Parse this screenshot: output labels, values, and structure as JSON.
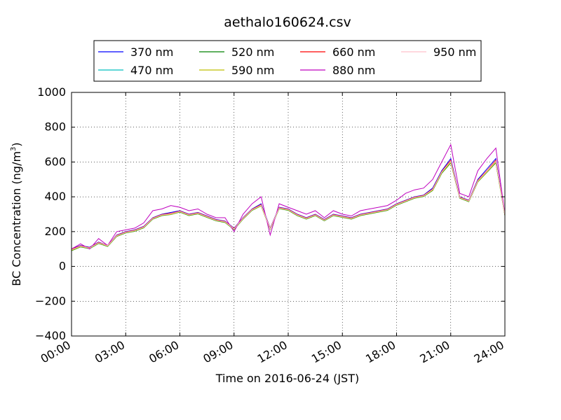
{
  "chart_data": {
    "type": "line",
    "title": "aethalo160624.csv",
    "xlabel": "Time on 2016-06-24 (JST)",
    "ylabel": "BC Concentration (ng/m",
    "ylabel_sup": "3",
    "ylabel_tail": ")",
    "xlim": [
      "00:00",
      "24:00"
    ],
    "x_ticks": [
      "00:00",
      "03:00",
      "06:00",
      "09:00",
      "12:00",
      "15:00",
      "18:00",
      "21:00",
      "24:00"
    ],
    "ylim": [
      -400,
      1000
    ],
    "y_ticks": [
      "−400",
      "−200",
      "0",
      "200",
      "400",
      "600",
      "800",
      "1000"
    ],
    "grid": true,
    "legend_position": "top",
    "x_hours": [
      0,
      0.5,
      1,
      1.5,
      2,
      2.5,
      3,
      3.5,
      4,
      4.5,
      5,
      5.5,
      6,
      6.5,
      7,
      7.5,
      8,
      8.5,
      9,
      9.5,
      10,
      10.5,
      11,
      11.5,
      12,
      12.5,
      13,
      13.5,
      14,
      14.5,
      15,
      15.5,
      16,
      16.5,
      17,
      17.5,
      18,
      18.5,
      19,
      19.5,
      20,
      20.5,
      21,
      21.5,
      22,
      22.5,
      23,
      23.5,
      24
    ],
    "series": [
      {
        "name": "370 nm",
        "color": "#0000ff",
        "values": [
          100,
          120,
          110,
          140,
          120,
          180,
          200,
          210,
          230,
          280,
          300,
          310,
          320,
          300,
          310,
          290,
          270,
          260,
          220,
          280,
          330,
          360,
          220,
          340,
          330,
          300,
          280,
          300,
          270,
          300,
          290,
          280,
          300,
          310,
          320,
          330,
          360,
          380,
          400,
          410,
          450,
          550,
          620,
          400,
          380,
          500,
          560,
          620,
          300
        ]
      },
      {
        "name": "470 nm",
        "color": "#00bfbf",
        "values": [
          95,
          115,
          105,
          135,
          118,
          175,
          195,
          205,
          225,
          275,
          295,
          300,
          315,
          295,
          305,
          285,
          265,
          255,
          215,
          275,
          325,
          350,
          215,
          335,
          325,
          295,
          275,
          295,
          265,
          295,
          285,
          275,
          295,
          305,
          315,
          325,
          355,
          375,
          395,
          405,
          440,
          540,
          600,
          395,
          375,
          490,
          545,
          600,
          295
        ]
      },
      {
        "name": "520 nm",
        "color": "#008000",
        "values": [
          90,
          112,
          102,
          132,
          115,
          172,
          192,
          202,
          222,
          272,
          292,
          298,
          312,
          292,
          302,
          282,
          262,
          252,
          212,
          272,
          322,
          348,
          212,
          332,
          322,
          292,
          272,
          292,
          262,
          292,
          282,
          272,
          292,
          302,
          312,
          322,
          352,
          372,
          392,
          402,
          436,
          535,
          595,
          392,
          372,
          486,
          540,
          595,
          292
        ]
      },
      {
        "name": "590 nm",
        "color": "#bfbf00",
        "values": [
          92,
          114,
          104,
          134,
          117,
          174,
          194,
          204,
          224,
          274,
          294,
          299,
          314,
          294,
          304,
          284,
          264,
          254,
          214,
          274,
          324,
          349,
          214,
          334,
          324,
          294,
          274,
          294,
          264,
          294,
          284,
          274,
          294,
          304,
          314,
          324,
          354,
          374,
          394,
          404,
          438,
          538,
          598,
          394,
          374,
          488,
          542,
          598,
          294
        ]
      },
      {
        "name": "660 nm",
        "color": "#ff0000",
        "values": [
          98,
          118,
          108,
          138,
          120,
          178,
          198,
          208,
          228,
          278,
          298,
          305,
          318,
          298,
          308,
          288,
          268,
          258,
          218,
          278,
          328,
          355,
          218,
          338,
          328,
          298,
          278,
          298,
          268,
          298,
          288,
          278,
          298,
          308,
          318,
          328,
          358,
          378,
          398,
          408,
          445,
          545,
          610,
          398,
          378,
          495,
          550,
          610,
          298
        ]
      },
      {
        "name": "880 nm",
        "color": "#bf00bf",
        "values": [
          100,
          130,
          100,
          160,
          120,
          200,
          210,
          220,
          250,
          320,
          330,
          350,
          340,
          320,
          330,
          300,
          280,
          280,
          200,
          300,
          360,
          400,
          180,
          360,
          340,
          320,
          300,
          320,
          280,
          320,
          300,
          290,
          320,
          330,
          340,
          350,
          380,
          420,
          440,
          450,
          500,
          600,
          700,
          420,
          400,
          550,
          620,
          680,
          300
        ]
      },
      {
        "name": "950 nm",
        "color": "#ffc0cb",
        "values": [
          96,
          116,
          106,
          136,
          119,
          176,
          196,
          206,
          226,
          276,
          296,
          302,
          316,
          296,
          306,
          286,
          266,
          256,
          216,
          276,
          326,
          352,
          216,
          336,
          326,
          296,
          276,
          296,
          266,
          296,
          286,
          276,
          296,
          306,
          316,
          326,
          356,
          376,
          396,
          406,
          442,
          542,
          605,
          396,
          376,
          492,
          547,
          605,
          296
        ]
      }
    ]
  }
}
